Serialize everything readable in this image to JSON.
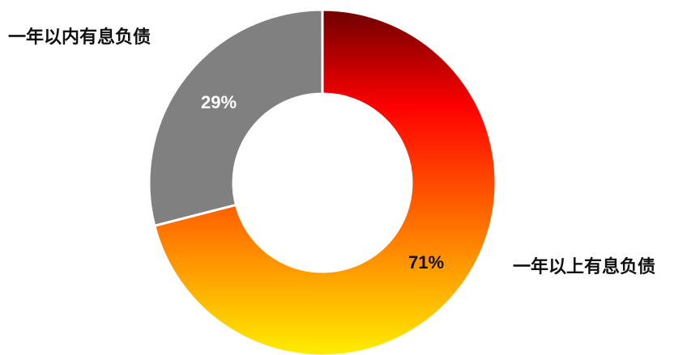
{
  "chart_data": {
    "type": "pie",
    "donut": true,
    "slices": [
      {
        "label": "一年以上有息负债",
        "value": 71,
        "value_label": "71%",
        "color_top": "#6e0000",
        "color_mid": "#ff0000",
        "color_bottom": "#ffee00",
        "text_color": "#111111"
      },
      {
        "label": "一年以内有息负债",
        "value": 29,
        "value_label": "29%",
        "color": "#808080",
        "text_color": "#ffffff"
      }
    ]
  }
}
